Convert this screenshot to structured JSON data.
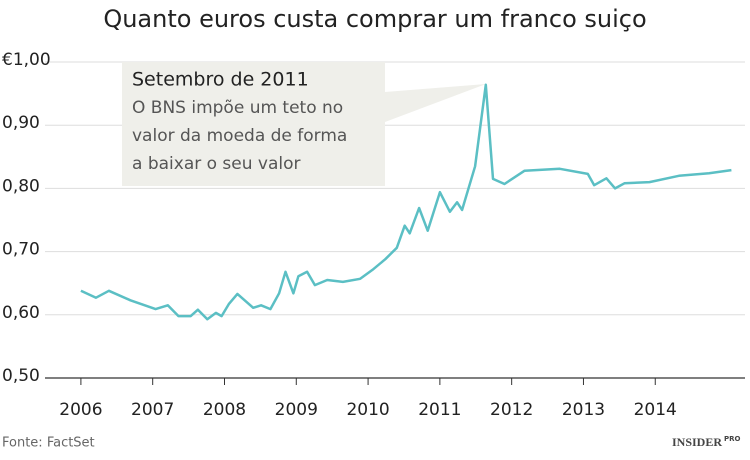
{
  "chart_data": {
    "type": "line",
    "title": "Quanto euros custa comprar um franco suiço",
    "x": [
      2006.0,
      2006.21,
      2006.39,
      2006.69,
      2007.04,
      2007.21,
      2007.36,
      2007.53,
      2007.63,
      2007.76,
      2007.88,
      2007.96,
      2008.06,
      2008.18,
      2008.4,
      2008.51,
      2008.64,
      2008.76,
      2008.85,
      2008.96,
      2009.03,
      2009.15,
      2009.26,
      2009.43,
      2009.65,
      2009.89,
      2010.06,
      2010.24,
      2010.4,
      2010.51,
      2010.58,
      2010.71,
      2010.83,
      2011.0,
      2011.14,
      2011.24,
      2011.31,
      2011.49,
      2011.64,
      2011.74,
      2011.9,
      2012.18,
      2012.67,
      2013.06,
      2013.15,
      2013.32,
      2013.44,
      2013.57,
      2013.92,
      2014.33,
      2014.75,
      2015.06
    ],
    "values": [
      0.638,
      0.627,
      0.638,
      0.623,
      0.609,
      0.615,
      0.598,
      0.598,
      0.608,
      0.593,
      0.603,
      0.598,
      0.617,
      0.633,
      0.611,
      0.615,
      0.609,
      0.634,
      0.668,
      0.634,
      0.661,
      0.668,
      0.647,
      0.655,
      0.652,
      0.657,
      0.671,
      0.688,
      0.706,
      0.741,
      0.729,
      0.769,
      0.733,
      0.794,
      0.763,
      0.778,
      0.766,
      0.835,
      0.964,
      0.815,
      0.807,
      0.828,
      0.831,
      0.823,
      0.805,
      0.816,
      0.8,
      0.808,
      0.81,
      0.82,
      0.824,
      0.829
    ],
    "color": "#5bbfc4",
    "xlim": [
      2005.5,
      2015.25
    ],
    "xticks": [
      2006,
      2007,
      2008,
      2009,
      2010,
      2011,
      2012,
      2013,
      2014
    ],
    "ylim": [
      0.5,
      1.0
    ],
    "yticks": [
      {
        "value": 0.5,
        "label": "0,50"
      },
      {
        "value": 0.6,
        "label": "0,60"
      },
      {
        "value": 0.7,
        "label": "0,70"
      },
      {
        "value": 0.8,
        "label": "0,80"
      },
      {
        "value": 0.9,
        "label": "0,90"
      },
      {
        "value": 1.0,
        "label": "€1,00"
      }
    ],
    "grid": true,
    "annotation": {
      "title": "Setembro de 2011",
      "lines": [
        "O BNS impõe um teto no",
        "valor da moeda de forma",
        "a baixar o seu valor"
      ]
    },
    "source": "Fonte: FactSet",
    "logo": {
      "text": "INSIDER",
      "badge": "PRO"
    }
  }
}
